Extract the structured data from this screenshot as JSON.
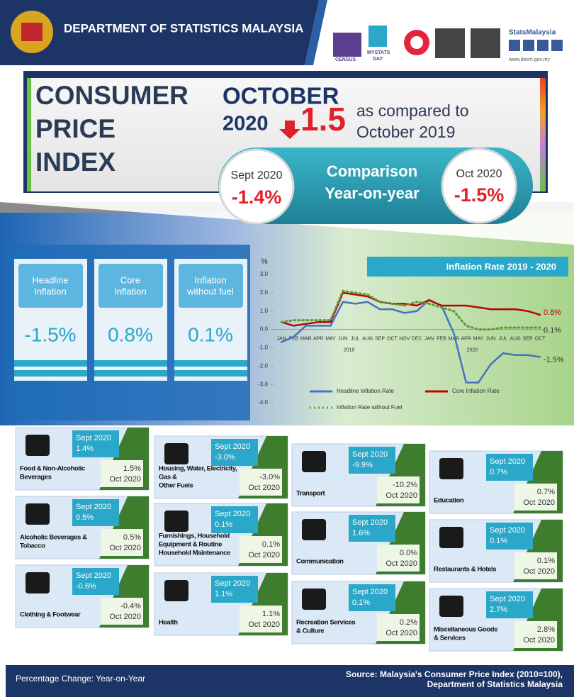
{
  "header": {
    "title": "DEPARTMENT OF STATISTICS MALAYSIA",
    "census": "CENSUS",
    "mystats": "MYSTATS",
    "day": "DAY",
    "brand": "StatsMalaysia",
    "url": "www.dosm.gov.my"
  },
  "hero": {
    "title_lines": [
      "CONSUMER",
      "PRICE",
      "INDEX"
    ],
    "month": "OCTOBER",
    "year": "2020",
    "value": "1.5",
    "compare_lines": [
      "as compared to",
      "October 2019"
    ]
  },
  "comparison": {
    "left_label": "Sept 2020",
    "left_value": "-1.4%",
    "center_lines": [
      "Comparison",
      "Year-on-year"
    ],
    "right_label": "Oct 2020",
    "right_value": "-1.5%"
  },
  "summary": [
    {
      "label_lines": [
        "Headline",
        "Inflation"
      ],
      "value": "-1.5%"
    },
    {
      "label_lines": [
        "Core",
        "Inflation"
      ],
      "value": "0.8%"
    },
    {
      "label_lines": [
        "Inflation",
        "without fuel"
      ],
      "value": "0.1%"
    }
  ],
  "chart_data": {
    "type": "line",
    "title": "Inflation Rate 2019 - 2020",
    "y_label": "%",
    "categories": [
      "JAN",
      "FEB",
      "MAR",
      "APR",
      "MAY",
      "JUN",
      "JUL",
      "AUG",
      "SEP",
      "OCT",
      "NOV",
      "DEC",
      "JAN",
      "FEB",
      "MAR",
      "APR",
      "MAY",
      "JUN",
      "JUL",
      "AUG",
      "SEP",
      "OCT"
    ],
    "year_labels": [
      "2019",
      "2020"
    ],
    "ylim": [
      -4,
      3
    ],
    "yticks": [
      {
        "value": 3,
        "label": "3.0"
      },
      {
        "value": 2,
        "label": "2.0"
      },
      {
        "value": 1,
        "label": "1.0"
      },
      {
        "value": 0,
        "label": "0.0"
      },
      {
        "value": -1,
        "label": "-1.0"
      },
      {
        "value": -2,
        "label": "-2.0"
      },
      {
        "value": -3,
        "label": "-3.0"
      },
      {
        "value": -4,
        "label": "-4.0"
      }
    ],
    "series": [
      {
        "name": "Headline Inflation Rate",
        "color": "#4472c4",
        "style": "solid",
        "values": [
          -0.7,
          -0.4,
          0.2,
          0.2,
          0.2,
          1.5,
          1.4,
          1.5,
          1.1,
          1.1,
          0.9,
          1.0,
          1.6,
          1.3,
          -0.2,
          -2.9,
          -2.9,
          -1.9,
          -1.3,
          -1.4,
          -1.4,
          -1.5
        ],
        "value_labels": [
          null,
          null,
          null,
          null,
          null,
          null,
          null,
          null,
          null,
          null,
          null,
          null,
          null,
          null,
          null,
          null,
          null,
          null,
          null,
          null,
          null,
          "-1.5%"
        ]
      },
      {
        "name": "Core Inflation Rate",
        "color": "#c00000",
        "style": "solid",
        "values": [
          0.4,
          0.2,
          0.3,
          0.4,
          0.4,
          2.0,
          1.9,
          1.8,
          1.5,
          1.4,
          1.4,
          1.3,
          1.6,
          1.3,
          1.3,
          1.3,
          1.2,
          1.1,
          1.1,
          1.1,
          1.0,
          0.8
        ],
        "value_labels": [
          null,
          null,
          null,
          null,
          null,
          null,
          null,
          null,
          null,
          null,
          null,
          null,
          null,
          null,
          null,
          null,
          null,
          null,
          null,
          null,
          null,
          "0.8%"
        ]
      },
      {
        "name": "Inflation Rate without Fuel",
        "color": "#5b9b3b",
        "style": "dotted",
        "values": [
          0.4,
          0.5,
          0.5,
          0.5,
          0.5,
          2.1,
          2.0,
          1.9,
          1.5,
          1.4,
          1.3,
          1.5,
          1.4,
          1.2,
          1.0,
          0.2,
          0.0,
          0.0,
          0.1,
          0.1,
          0.1,
          0.1
        ],
        "value_labels": [
          null,
          null,
          null,
          null,
          null,
          null,
          null,
          null,
          null,
          null,
          null,
          null,
          null,
          null,
          null,
          null,
          null,
          null,
          null,
          null,
          null,
          "0.1%"
        ]
      }
    ]
  },
  "groups": {
    "sept_label": "Sept 2020",
    "oct_label": "Oct 2020",
    "items": [
      {
        "name_lines": [
          "Food & Non-Alcoholic",
          "Beverages"
        ],
        "sept": "1.4%",
        "oct": "1.5%"
      },
      {
        "name_lines": [
          "Alcoholic Beverages &",
          "Tobacco"
        ],
        "sept": "0.5%",
        "oct": "0.5%"
      },
      {
        "name_lines": [
          "Clothing & Footwear"
        ],
        "sept": "-0.6%",
        "oct": "-0.4%"
      },
      {
        "name_lines": [
          "Housing, Water, Electricity,",
          "Gas &",
          "Other Fuels"
        ],
        "sept": "-3.0%",
        "oct": "-3.0%"
      },
      {
        "name_lines": [
          "Furnishings, Household",
          "Equipment & Routine",
          "Household Maintenance"
        ],
        "sept": "0.1%",
        "oct": "0.1%"
      },
      {
        "name_lines": [
          "Health"
        ],
        "sept": "1.1%",
        "oct": "1.1%"
      },
      {
        "name_lines": [
          "Transport"
        ],
        "sept": "-9.9%",
        "oct": "-10.2%"
      },
      {
        "name_lines": [
          "Communication"
        ],
        "sept": "1.6%",
        "oct": "0.0%"
      },
      {
        "name_lines": [
          "Recreation Services",
          "& Culture"
        ],
        "sept": "0.1%",
        "oct": "0.2%"
      },
      {
        "name_lines": [
          "Education"
        ],
        "sept": "0.7%",
        "oct": "0.7%"
      },
      {
        "name_lines": [
          "Restaurants & Hotels"
        ],
        "sept": "0.1%",
        "oct": "0.1%"
      },
      {
        "name_lines": [
          "Miscellaneous Goods",
          "& Services"
        ],
        "sept": "2.7%",
        "oct": "2.8%"
      }
    ]
  },
  "footer": {
    "left": "Percentage Change: Year-on-Year",
    "source_lines": [
      "Source: Malaysia's Consumer Price Index (2010=100),",
      "Department of Statistics Malaysia"
    ]
  }
}
